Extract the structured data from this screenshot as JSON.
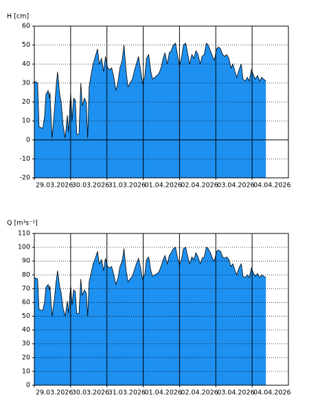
{
  "chart_data": [
    {
      "type": "area",
      "y_label": "H [cm]",
      "color": "#1e90f0",
      "line_color": "#000000",
      "grid": true,
      "xlim": [
        0,
        7
      ],
      "ylim": [
        -20,
        60
      ],
      "yticks": [
        -20,
        -10,
        0,
        10,
        20,
        30,
        40,
        50,
        60
      ],
      "xticks": [
        {
          "value": 0,
          "label": "29.03.2026"
        },
        {
          "value": 1,
          "label": "30.03.2026"
        },
        {
          "value": 2,
          "label": "31.03.2026"
        },
        {
          "value": 3,
          "label": "01.04.2026"
        },
        {
          "value": 4,
          "label": "02.04.2026"
        },
        {
          "value": 5,
          "label": "03.04.2026"
        },
        {
          "value": 6,
          "label": "04.04.2026"
        }
      ],
      "x": [
        0,
        0.09,
        0.13,
        0.23,
        0.28,
        0.32,
        0.38,
        0.42,
        0.43,
        0.49,
        0.55,
        0.6,
        0.64,
        0.7,
        0.74,
        0.79,
        0.85,
        0.91,
        0.94,
        1.0,
        1.04,
        1.08,
        1.13,
        1.17,
        1.23,
        1.28,
        1.32,
        1.38,
        1.43,
        1.47,
        1.51,
        1.57,
        1.62,
        1.68,
        1.74,
        1.79,
        1.85,
        1.91,
        1.96,
        2.02,
        2.08,
        2.13,
        2.19,
        2.25,
        2.3,
        2.36,
        2.42,
        2.47,
        2.53,
        2.58,
        2.64,
        2.7,
        2.75,
        2.81,
        2.87,
        2.92,
        2.98,
        3.04,
        3.09,
        3.15,
        3.21,
        3.26,
        3.32,
        3.38,
        3.43,
        3.49,
        3.55,
        3.6,
        3.66,
        3.72,
        3.77,
        3.83,
        3.89,
        3.94,
        4.0,
        4.06,
        4.11,
        4.17,
        4.23,
        4.28,
        4.34,
        4.4,
        4.45,
        4.51,
        4.57,
        4.62,
        4.68,
        4.74,
        4.79,
        4.85,
        4.91,
        4.96,
        5.02,
        5.08,
        5.13,
        5.19,
        5.25,
        5.3,
        5.36,
        5.42,
        5.47,
        5.53,
        5.58,
        5.64,
        5.7,
        5.75,
        5.81,
        5.87,
        5.92,
        5.98,
        6.04,
        6.09,
        6.15,
        6.21,
        6.26,
        6.32,
        6.38
      ],
      "values": [
        31,
        30,
        7,
        6,
        12,
        24,
        26,
        22,
        25,
        1,
        15,
        28,
        36,
        24,
        20,
        8,
        1,
        13,
        4,
        25,
        10,
        22,
        21,
        3,
        3,
        30,
        18,
        22,
        20,
        1,
        28,
        35,
        40,
        44,
        48,
        40,
        43,
        36,
        44,
        38,
        37,
        38,
        33,
        26,
        30,
        38,
        42,
        50,
        36,
        28,
        30,
        32,
        36,
        40,
        44,
        38,
        30,
        33,
        43,
        45,
        36,
        32,
        33,
        34,
        35,
        38,
        43,
        46,
        40,
        46,
        47,
        50,
        51,
        45,
        39,
        44,
        50,
        51,
        45,
        40,
        45,
        43,
        47,
        45,
        40,
        44,
        45,
        51,
        50,
        47,
        44,
        42,
        48,
        49,
        48,
        45,
        44,
        45,
        43,
        38,
        40,
        36,
        33,
        37,
        40,
        32,
        31,
        33,
        31,
        37,
        34,
        32,
        34,
        31,
        33,
        32,
        31
      ]
    },
    {
      "type": "area",
      "y_label": "Q [m³s⁻¹]",
      "color": "#1e90f0",
      "line_color": "#000000",
      "grid": true,
      "xlim": [
        0,
        7
      ],
      "ylim": [
        0,
        110
      ],
      "yticks": [
        0,
        10,
        20,
        30,
        40,
        50,
        60,
        70,
        80,
        90,
        100,
        110
      ],
      "xticks": [
        {
          "value": 0,
          "label": "29.03.2026"
        },
        {
          "value": 1,
          "label": "30.03.2026"
        },
        {
          "value": 2,
          "label": "31.03.2026"
        },
        {
          "value": 3,
          "label": "01.04.2026"
        },
        {
          "value": 4,
          "label": "02.04.2026"
        },
        {
          "value": 5,
          "label": "03.04.2026"
        },
        {
          "value": 6,
          "label": "04.04.2026"
        }
      ],
      "x": [
        0,
        0.09,
        0.13,
        0.23,
        0.28,
        0.32,
        0.38,
        0.42,
        0.43,
        0.49,
        0.55,
        0.6,
        0.64,
        0.7,
        0.74,
        0.79,
        0.85,
        0.91,
        0.94,
        1.0,
        1.04,
        1.08,
        1.13,
        1.17,
        1.23,
        1.28,
        1.32,
        1.38,
        1.43,
        1.47,
        1.51,
        1.57,
        1.62,
        1.68,
        1.74,
        1.79,
        1.85,
        1.91,
        1.96,
        2.02,
        2.08,
        2.13,
        2.19,
        2.25,
        2.3,
        2.36,
        2.42,
        2.47,
        2.53,
        2.58,
        2.64,
        2.7,
        2.75,
        2.81,
        2.87,
        2.92,
        2.98,
        3.04,
        3.09,
        3.15,
        3.21,
        3.26,
        3.32,
        3.38,
        3.43,
        3.49,
        3.55,
        3.6,
        3.66,
        3.72,
        3.77,
        3.83,
        3.89,
        3.94,
        4.0,
        4.06,
        4.11,
        4.17,
        4.23,
        4.28,
        4.34,
        4.4,
        4.45,
        4.51,
        4.57,
        4.62,
        4.68,
        4.74,
        4.79,
        4.85,
        4.91,
        4.96,
        5.02,
        5.08,
        5.13,
        5.19,
        5.25,
        5.3,
        5.36,
        5.42,
        5.47,
        5.53,
        5.58,
        5.64,
        5.7,
        5.75,
        5.81,
        5.87,
        5.92,
        5.98,
        6.04,
        6.09,
        6.15,
        6.21,
        6.26,
        6.32,
        6.38
      ],
      "values": [
        78,
        77,
        55,
        54,
        60,
        71,
        73,
        69,
        72,
        50,
        62,
        75,
        83,
        71,
        67,
        56,
        50,
        61,
        52,
        72,
        58,
        69,
        68,
        52,
        52,
        77,
        65,
        69,
        67,
        50,
        75,
        82,
        88,
        92,
        97,
        88,
        91,
        83,
        92,
        86,
        85,
        86,
        80,
        73,
        77,
        86,
        90,
        99,
        83,
        75,
        77,
        79,
        83,
        88,
        92,
        86,
        77,
        80,
        91,
        93,
        83,
        79,
        80,
        81,
        82,
        86,
        91,
        94,
        88,
        94,
        96,
        99,
        100,
        93,
        87,
        92,
        99,
        100,
        93,
        88,
        93,
        91,
        96,
        93,
        88,
        92,
        93,
        100,
        99,
        96,
        92,
        90,
        97,
        98,
        97,
        93,
        92,
        93,
        91,
        86,
        88,
        83,
        80,
        85,
        88,
        79,
        78,
        80,
        78,
        85,
        81,
        79,
        81,
        78,
        80,
        79,
        78
      ]
    }
  ]
}
